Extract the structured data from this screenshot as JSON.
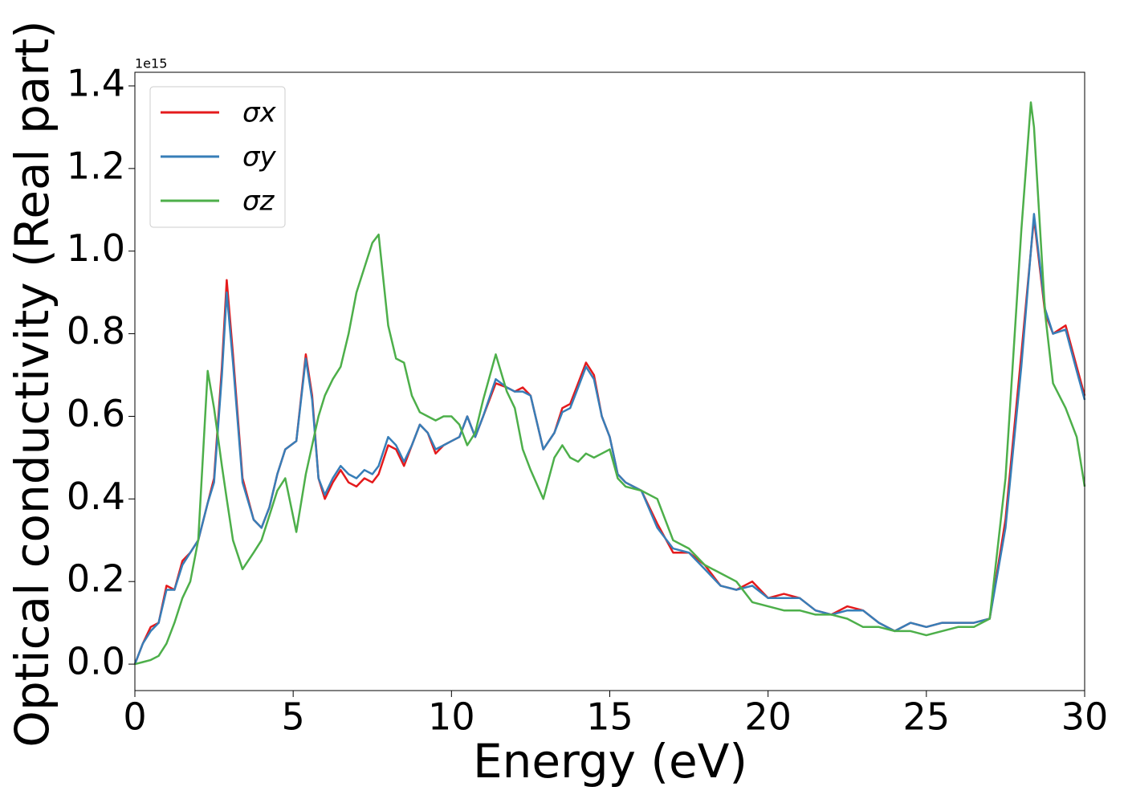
{
  "chart_data": {
    "type": "line",
    "y_offset_label": "1e15",
    "xlabel": "Energy (eV)",
    "ylabel": "Optical conductivity (Real part)",
    "xlim": [
      0,
      30
    ],
    "ylim": [
      -0.064,
      1.433
    ],
    "xticks": [
      0,
      5,
      10,
      15,
      20,
      25,
      30
    ],
    "yticks": [
      {
        "value": 0,
        "label": "0.0"
      },
      0.2,
      0.4,
      0.6,
      0.8,
      {
        "value": 1,
        "label": "1.0"
      },
      1.2,
      1.4
    ],
    "legend": "upper left",
    "x": [
      0,
      0.25,
      0.5,
      0.75,
      1,
      1.25,
      1.5,
      1.75,
      2,
      2.3,
      2.5,
      2.75,
      2.9,
      3.1,
      3.4,
      3.75,
      4,
      4.25,
      4.5,
      4.75,
      5.1,
      5.4,
      5.6,
      5.8,
      6,
      6.25,
      6.5,
      6.75,
      7,
      7.25,
      7.5,
      7.7,
      8,
      8.25,
      8.5,
      8.75,
      9,
      9.25,
      9.5,
      9.75,
      10,
      10.25,
      10.5,
      10.75,
      11,
      11.4,
      11.75,
      12,
      12.25,
      12.5,
      12.9,
      13.25,
      13.5,
      13.75,
      14,
      14.25,
      14.5,
      14.75,
      15,
      15.25,
      15.5,
      16,
      16.5,
      17,
      17.5,
      18,
      18.5,
      19,
      19.5,
      20,
      20.5,
      21,
      21.5,
      22,
      22.5,
      23,
      23.5,
      24,
      24.5,
      25,
      25.5,
      26,
      26.5,
      27,
      27.5,
      28,
      28.3,
      28.4,
      28.75,
      29,
      29.4,
      29.75,
      30
    ],
    "series": [
      {
        "name": "σx",
        "color": "#e41a1c",
        "values": [
          0,
          0.05,
          0.09,
          0.1,
          0.19,
          0.18,
          0.25,
          0.27,
          0.3,
          0.39,
          0.45,
          0.72,
          0.93,
          0.75,
          0.45,
          0.35,
          0.33,
          0.38,
          0.46,
          0.52,
          0.54,
          0.75,
          0.65,
          0.45,
          0.4,
          0.44,
          0.47,
          0.44,
          0.43,
          0.45,
          0.44,
          0.46,
          0.53,
          0.52,
          0.48,
          0.53,
          0.58,
          0.56,
          0.51,
          0.53,
          0.54,
          0.55,
          0.6,
          0.55,
          0.6,
          0.68,
          0.67,
          0.66,
          0.67,
          0.65,
          0.52,
          0.56,
          0.62,
          0.63,
          0.68,
          0.73,
          0.7,
          0.6,
          0.55,
          0.46,
          0.44,
          0.42,
          0.34,
          0.27,
          0.27,
          0.24,
          0.19,
          0.18,
          0.2,
          0.16,
          0.17,
          0.16,
          0.13,
          0.12,
          0.14,
          0.13,
          0.1,
          0.08,
          0.1,
          0.09,
          0.1,
          0.1,
          0.1,
          0.11,
          0.35,
          0.75,
          1.0,
          1.08,
          0.85,
          0.8,
          0.82,
          0.72,
          0.65
        ]
      },
      {
        "name": "σy",
        "color": "#377eb8",
        "values": [
          0,
          0.05,
          0.08,
          0.1,
          0.18,
          0.18,
          0.24,
          0.27,
          0.3,
          0.39,
          0.44,
          0.7,
          0.9,
          0.73,
          0.44,
          0.35,
          0.33,
          0.38,
          0.46,
          0.52,
          0.54,
          0.74,
          0.64,
          0.45,
          0.41,
          0.45,
          0.48,
          0.46,
          0.45,
          0.47,
          0.46,
          0.48,
          0.55,
          0.53,
          0.49,
          0.53,
          0.58,
          0.56,
          0.52,
          0.53,
          0.54,
          0.55,
          0.6,
          0.55,
          0.6,
          0.69,
          0.67,
          0.66,
          0.66,
          0.65,
          0.52,
          0.56,
          0.61,
          0.62,
          0.67,
          0.72,
          0.69,
          0.6,
          0.55,
          0.46,
          0.44,
          0.42,
          0.33,
          0.28,
          0.27,
          0.23,
          0.19,
          0.18,
          0.19,
          0.16,
          0.16,
          0.16,
          0.13,
          0.12,
          0.13,
          0.13,
          0.1,
          0.08,
          0.1,
          0.09,
          0.1,
          0.1,
          0.1,
          0.11,
          0.33,
          0.72,
          1.0,
          1.09,
          0.86,
          0.8,
          0.81,
          0.71,
          0.64
        ]
      },
      {
        "name": "σz",
        "color": "#4daf4a",
        "values": [
          0,
          0.005,
          0.01,
          0.02,
          0.05,
          0.1,
          0.16,
          0.2,
          0.3,
          0.71,
          0.62,
          0.48,
          0.4,
          0.3,
          0.23,
          0.27,
          0.3,
          0.36,
          0.42,
          0.45,
          0.32,
          0.46,
          0.53,
          0.6,
          0.65,
          0.69,
          0.72,
          0.8,
          0.9,
          0.96,
          1.02,
          1.04,
          0.82,
          0.74,
          0.73,
          0.65,
          0.61,
          0.6,
          0.59,
          0.6,
          0.6,
          0.58,
          0.53,
          0.56,
          0.64,
          0.75,
          0.66,
          0.62,
          0.52,
          0.47,
          0.4,
          0.5,
          0.53,
          0.5,
          0.49,
          0.51,
          0.5,
          0.51,
          0.52,
          0.45,
          0.43,
          0.42,
          0.4,
          0.3,
          0.28,
          0.24,
          0.22,
          0.2,
          0.15,
          0.14,
          0.13,
          0.13,
          0.12,
          0.12,
          0.11,
          0.09,
          0.09,
          0.08,
          0.08,
          0.07,
          0.08,
          0.09,
          0.09,
          0.11,
          0.45,
          1.05,
          1.36,
          1.3,
          0.85,
          0.68,
          0.62,
          0.55,
          0.43
        ]
      }
    ]
  }
}
